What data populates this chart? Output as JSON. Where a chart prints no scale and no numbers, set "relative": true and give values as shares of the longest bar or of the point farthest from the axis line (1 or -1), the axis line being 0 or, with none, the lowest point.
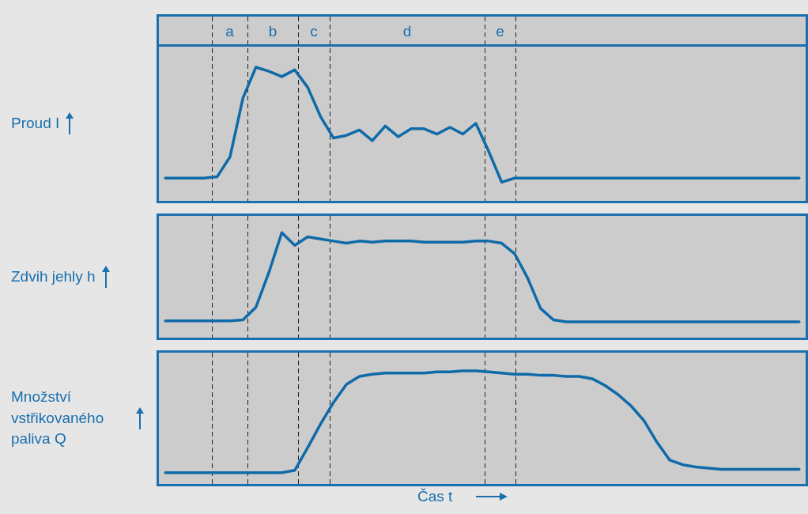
{
  "chart_data": [
    {
      "type": "line",
      "relative": true,
      "ylabel": "Proud I",
      "tick_labels": false,
      "annotations": [
        "a",
        "b",
        "c",
        "d",
        "e"
      ],
      "categories": [
        null,
        null,
        null,
        null,
        null,
        null,
        null,
        null,
        null,
        null,
        null,
        null,
        null,
        null,
        null,
        null,
        null,
        null,
        null,
        null,
        null,
        null,
        null,
        null,
        null,
        null,
        null,
        null,
        null,
        null,
        null,
        null,
        null,
        null,
        null,
        null,
        null,
        null,
        null,
        null,
        null,
        null,
        null,
        null,
        null,
        null,
        null,
        null,
        null,
        null
      ],
      "series": [
        {
          "color": "#0f6aa8",
          "values": [
            0.17,
            0.17,
            0.17,
            0.17,
            0.18,
            0.33,
            0.77,
            1.0,
            0.97,
            0.93,
            0.98,
            0.85,
            0.63,
            0.47,
            0.49,
            0.53,
            0.45,
            0.56,
            0.48,
            0.54,
            0.54,
            0.5,
            0.55,
            0.5,
            0.58,
            0.37,
            0.14,
            0.17,
            0.17,
            0.17,
            0.17,
            0.17,
            0.17,
            0.17,
            0.17,
            0.17,
            0.17,
            0.17,
            0.17,
            0.17,
            0.17,
            0.17,
            0.17,
            0.17,
            0.17,
            0.17,
            0.17,
            0.17,
            0.17,
            0.17
          ]
        }
      ]
    },
    {
      "type": "line",
      "relative": true,
      "ylabel": "Zdvih jehly h",
      "tick_labels": false,
      "categories": [
        null,
        null,
        null,
        null,
        null,
        null,
        null,
        null,
        null,
        null,
        null,
        null,
        null,
        null,
        null,
        null,
        null,
        null,
        null,
        null,
        null,
        null,
        null,
        null,
        null,
        null,
        null,
        null,
        null,
        null,
        null,
        null,
        null,
        null,
        null,
        null,
        null,
        null,
        null,
        null,
        null,
        null,
        null,
        null,
        null,
        null,
        null,
        null,
        null,
        null
      ],
      "series": [
        {
          "color": "#0f6aa8",
          "values": [
            0.16,
            0.16,
            0.16,
            0.16,
            0.16,
            0.16,
            0.17,
            0.29,
            0.62,
            1.0,
            0.88,
            0.96,
            0.94,
            0.92,
            0.9,
            0.92,
            0.91,
            0.92,
            0.92,
            0.92,
            0.91,
            0.91,
            0.91,
            0.91,
            0.92,
            0.92,
            0.9,
            0.8,
            0.57,
            0.28,
            0.17,
            0.15,
            0.15,
            0.15,
            0.15,
            0.15,
            0.15,
            0.15,
            0.15,
            0.15,
            0.15,
            0.15,
            0.15,
            0.15,
            0.15,
            0.15,
            0.15,
            0.15,
            0.15,
            0.15
          ]
        }
      ]
    },
    {
      "type": "line",
      "relative": true,
      "ylabel": "Množství vstřikovaného paliva Q",
      "xlabel": "Čas t",
      "tick_labels": false,
      "categories": [
        null,
        null,
        null,
        null,
        null,
        null,
        null,
        null,
        null,
        null,
        null,
        null,
        null,
        null,
        null,
        null,
        null,
        null,
        null,
        null,
        null,
        null,
        null,
        null,
        null,
        null,
        null,
        null,
        null,
        null,
        null,
        null,
        null,
        null,
        null,
        null,
        null,
        null,
        null,
        null,
        null,
        null,
        null,
        null,
        null,
        null,
        null,
        null,
        null,
        null
      ],
      "series": [
        {
          "color": "#0f6aa8",
          "values": [
            0.1,
            0.1,
            0.1,
            0.1,
            0.1,
            0.1,
            0.1,
            0.1,
            0.1,
            0.1,
            0.12,
            0.32,
            0.53,
            0.72,
            0.88,
            0.95,
            0.97,
            0.98,
            0.98,
            0.98,
            0.98,
            0.99,
            0.99,
            1.0,
            1.0,
            0.99,
            0.98,
            0.97,
            0.97,
            0.96,
            0.96,
            0.95,
            0.95,
            0.93,
            0.87,
            0.79,
            0.69,
            0.56,
            0.37,
            0.21,
            0.17,
            0.15,
            0.14,
            0.13,
            0.13,
            0.13,
            0.13,
            0.13,
            0.13,
            0.13
          ]
        }
      ]
    }
  ]
}
